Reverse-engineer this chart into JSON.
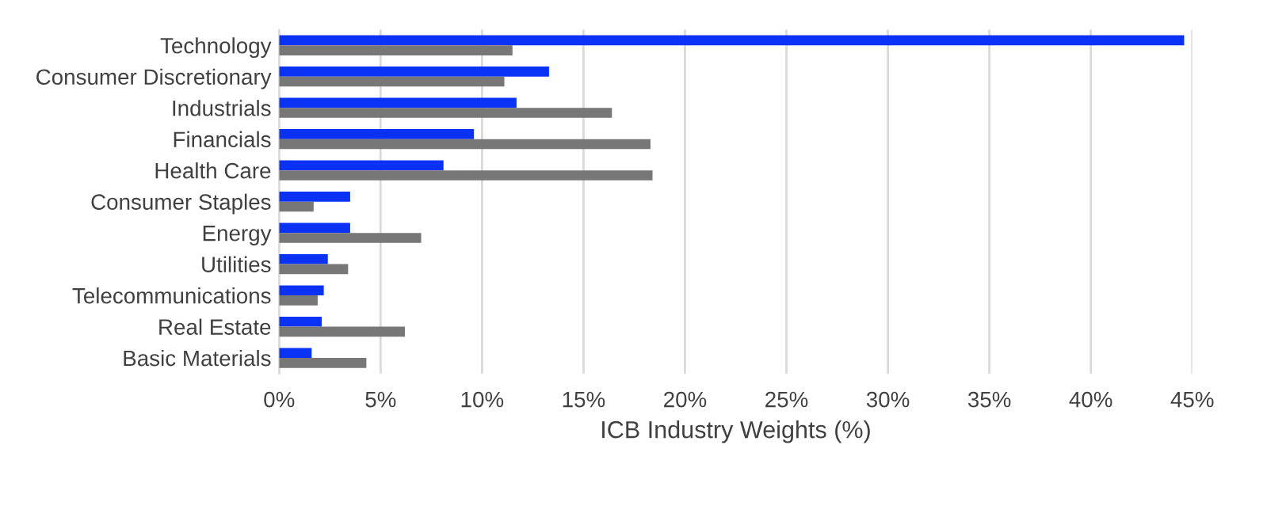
{
  "chart_data": {
    "type": "bar",
    "orientation": "horizontal",
    "xlabel": "ICB Industry Weights (%)",
    "categories": [
      "Technology",
      "Consumer Discretionary",
      "Industrials",
      "Financials",
      "Health Care",
      "Consumer Staples",
      "Energy",
      "Utilities",
      "Telecommunications",
      "Real Estate",
      "Basic Materials"
    ],
    "series": [
      {
        "color": "#0a32f5",
        "values": [
          44.6,
          13.3,
          11.7,
          9.6,
          8.1,
          3.5,
          3.5,
          2.4,
          2.2,
          2.1,
          1.6
        ]
      },
      {
        "color": "#777777",
        "values": [
          11.5,
          11.1,
          16.4,
          18.3,
          18.4,
          1.7,
          7.0,
          3.4,
          1.9,
          6.2,
          4.3
        ]
      }
    ],
    "xlim": [
      0,
      45
    ],
    "xticks": [
      {
        "value": 0,
        "label": "0%"
      },
      {
        "value": 5,
        "label": "5%"
      },
      {
        "value": 10,
        "label": "10%"
      },
      {
        "value": 15,
        "label": "15%"
      },
      {
        "value": 20,
        "label": "20%"
      },
      {
        "value": 25,
        "label": "25%"
      },
      {
        "value": 30,
        "label": "30%"
      },
      {
        "value": 35,
        "label": "35%"
      },
      {
        "value": 40,
        "label": "40%"
      },
      {
        "value": 45,
        "label": "45%"
      }
    ],
    "grid": "x"
  }
}
